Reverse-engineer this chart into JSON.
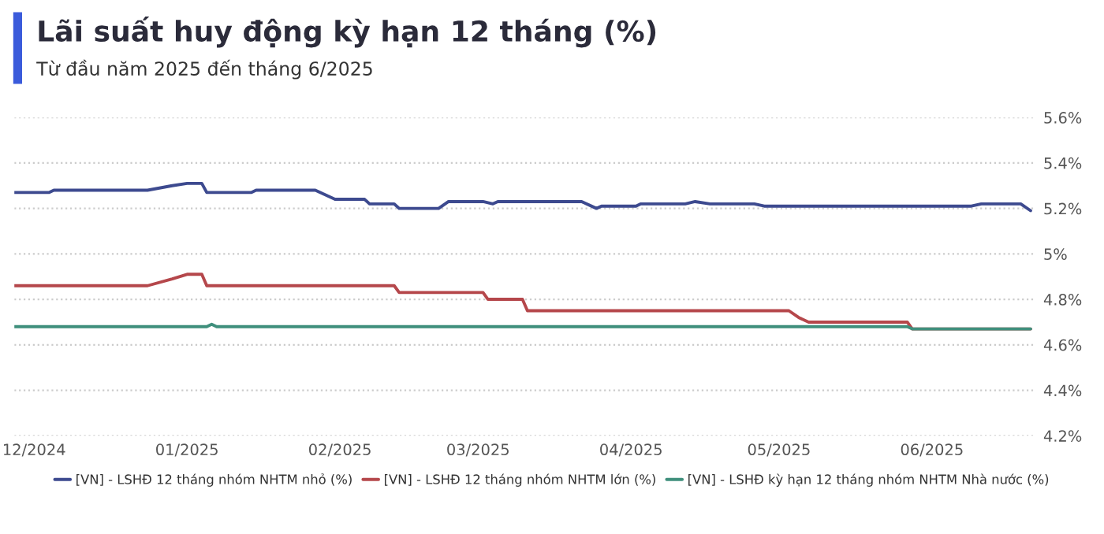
{
  "chart_data": {
    "type": "line",
    "title": "Lãi suất huy động kỳ hạn 12 tháng (%)",
    "subtitle": "Từ đầu năm 2025 đến tháng 6/2025",
    "xlim": [
      "2024-11-27",
      "2025-06-22"
    ],
    "xticks": [
      {
        "value": "2024-12-01",
        "label": "12/2024"
      },
      {
        "value": "2025-01-01",
        "label": "01/2025"
      },
      {
        "value": "2025-02-01",
        "label": "02/2025"
      },
      {
        "value": "2025-03-01",
        "label": "03/2025"
      },
      {
        "value": "2025-04-01",
        "label": "04/2025"
      },
      {
        "value": "2025-05-01",
        "label": "05/2025"
      },
      {
        "value": "2025-06-01",
        "label": "06/2025"
      }
    ],
    "ylim": [
      4.2,
      5.6
    ],
    "yticks": [
      {
        "value": 4.2,
        "label": "4.2%"
      },
      {
        "value": 4.4,
        "label": "4.4%"
      },
      {
        "value": 4.6,
        "label": "4.6%"
      },
      {
        "value": 4.8,
        "label": "4.8%"
      },
      {
        "value": 5.0,
        "label": "5%"
      },
      {
        "value": 5.2,
        "label": "5.2%"
      },
      {
        "value": 5.4,
        "label": "5.4%"
      },
      {
        "value": 5.6,
        "label": "5.6%"
      }
    ],
    "grid": "y",
    "legend": "bottom",
    "marker": "none",
    "line_style": "solid",
    "series": [
      {
        "name": "[VN] - LSHĐ 12 tháng nhóm NHTM nhỏ (%)",
        "color": "#3d4a8f",
        "x": [
          "2024-11-27",
          "2024-12-04",
          "2024-12-05",
          "2024-12-24",
          "2024-12-29",
          "2025-01-01",
          "2025-01-04",
          "2025-01-05",
          "2025-01-07",
          "2025-01-14",
          "2025-01-15",
          "2025-01-25",
          "2025-01-27",
          "2025-01-29",
          "2025-01-31",
          "2025-02-06",
          "2025-02-07",
          "2025-02-12",
          "2025-02-13",
          "2025-02-21",
          "2025-02-23",
          "2025-03-02",
          "2025-03-04",
          "2025-03-05",
          "2025-03-15",
          "2025-03-22",
          "2025-03-25",
          "2025-03-26",
          "2025-04-02",
          "2025-04-03",
          "2025-04-12",
          "2025-04-14",
          "2025-04-17",
          "2025-04-19",
          "2025-04-26",
          "2025-04-28",
          "2025-06-09",
          "2025-06-11",
          "2025-06-19",
          "2025-06-21"
        ],
        "values": [
          5.27,
          5.27,
          5.28,
          5.28,
          5.3,
          5.31,
          5.31,
          5.27,
          5.27,
          5.27,
          5.28,
          5.28,
          5.28,
          5.26,
          5.24,
          5.24,
          5.22,
          5.22,
          5.2,
          5.2,
          5.23,
          5.23,
          5.22,
          5.23,
          5.23,
          5.23,
          5.2,
          5.21,
          5.21,
          5.22,
          5.22,
          5.23,
          5.22,
          5.22,
          5.22,
          5.21,
          5.21,
          5.22,
          5.22,
          5.19
        ]
      },
      {
        "name": "[VN] - LSHĐ 12 tháng nhóm NHTM lớn (%)",
        "color": "#b5474b",
        "x": [
          "2024-11-27",
          "2024-12-24",
          "2024-12-29",
          "2025-01-01",
          "2025-01-04",
          "2025-01-05",
          "2025-02-12",
          "2025-02-13",
          "2025-03-02",
          "2025-03-03",
          "2025-03-10",
          "2025-03-11",
          "2025-05-03",
          "2025-05-05",
          "2025-05-07",
          "2025-05-27",
          "2025-05-28",
          "2025-06-21"
        ],
        "values": [
          4.86,
          4.86,
          4.89,
          4.91,
          4.91,
          4.86,
          4.86,
          4.83,
          4.83,
          4.8,
          4.8,
          4.75,
          4.75,
          4.72,
          4.7,
          4.7,
          4.67,
          4.67
        ]
      },
      {
        "name": "[VN] - LSHĐ kỳ hạn 12 tháng nhóm NHTM Nhà nước (%)",
        "color": "#3f8f7c",
        "x": [
          "2024-11-27",
          "2025-01-05",
          "2025-01-06",
          "2025-01-07",
          "2025-05-27",
          "2025-05-28",
          "2025-06-21"
        ],
        "values": [
          4.68,
          4.68,
          4.69,
          4.68,
          4.68,
          4.67,
          4.67
        ]
      }
    ]
  }
}
